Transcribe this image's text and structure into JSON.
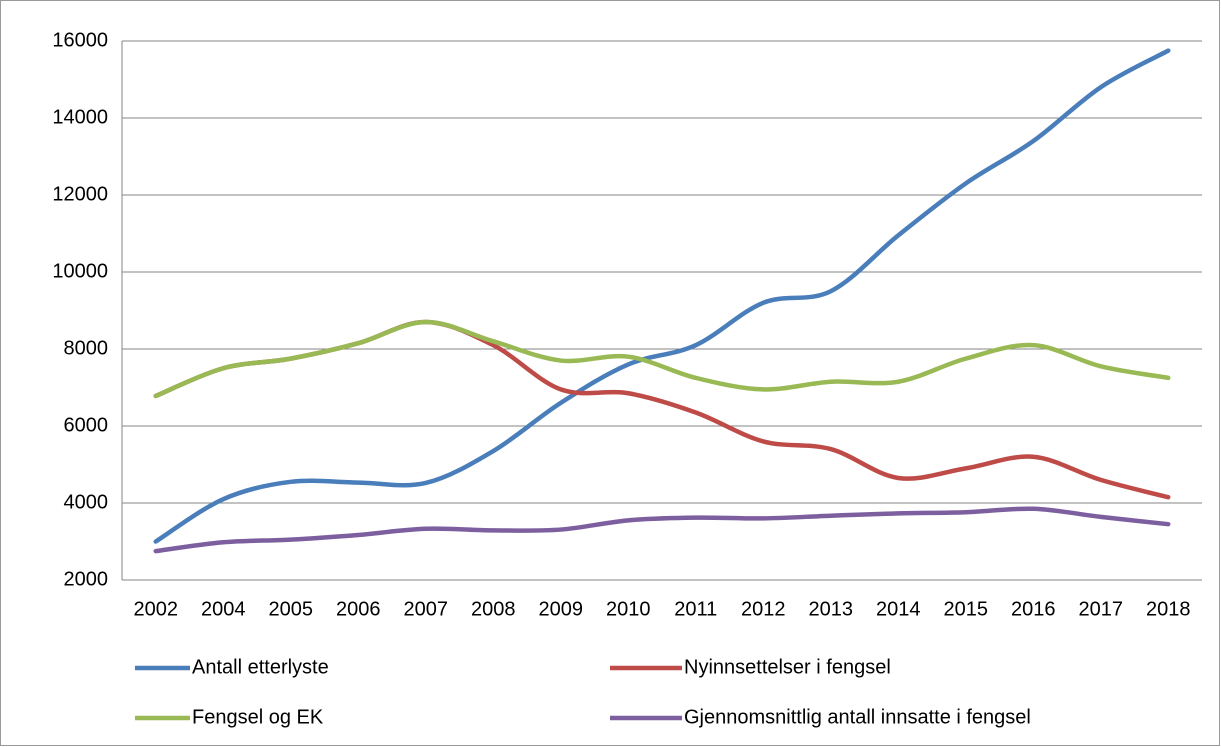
{
  "chart_data": {
    "type": "line",
    "categories": [
      "2002",
      "2004",
      "2005",
      "2006",
      "2007",
      "2008",
      "2009",
      "2010",
      "2011",
      "2012",
      "2013",
      "2014",
      "2015",
      "2016",
      "2017",
      "2018"
    ],
    "series": [
      {
        "name": "Antall etterlyste",
        "color": "#4a7ebb",
        "values": [
          3000,
          4100,
          4550,
          4530,
          4520,
          5350,
          6600,
          7600,
          8100,
          9200,
          9500,
          10950,
          12300,
          13400,
          14800,
          15750
        ]
      },
      {
        "name": "Nyinnsettelser i fengsel",
        "color": "#be4b48",
        "values": [
          6780,
          7500,
          7750,
          8150,
          8700,
          8100,
          6950,
          6850,
          6350,
          5600,
          5400,
          4650,
          4900,
          5200,
          4600,
          4150
        ]
      },
      {
        "name": "Fengsel og EK",
        "color": "#98b954",
        "values": [
          6780,
          7500,
          7750,
          8150,
          8700,
          8200,
          7700,
          7800,
          7250,
          6950,
          7150,
          7150,
          7750,
          8100,
          7550,
          7250
        ]
      },
      {
        "name": "Gjennomsnittlig antall innsatte i fengsel",
        "color": "#7d5fa0",
        "values": [
          2750,
          2980,
          3050,
          3170,
          3330,
          3290,
          3310,
          3550,
          3620,
          3600,
          3670,
          3730,
          3760,
          3850,
          3640,
          3450
        ]
      }
    ],
    "ylim": [
      2000,
      16000
    ],
    "yticks": [
      2000,
      4000,
      6000,
      8000,
      10000,
      12000,
      14000,
      16000
    ],
    "grid": true,
    "legend": "bottom"
  }
}
